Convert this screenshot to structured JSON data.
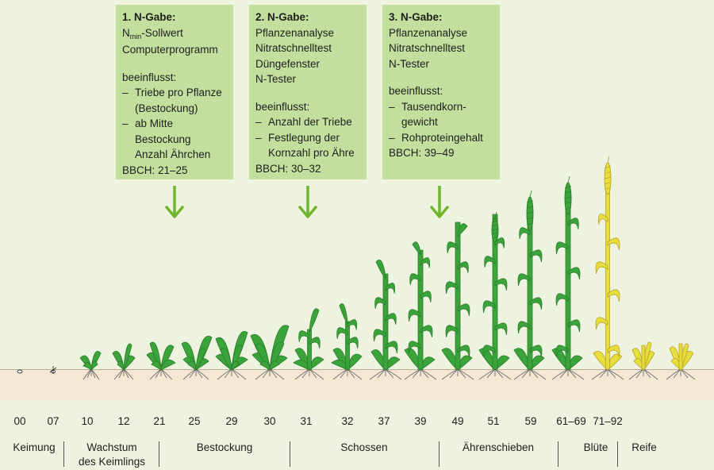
{
  "boxes": [
    {
      "title": "1. N-Gabe:",
      "methods": [
        {
          "main": "N",
          "sub": "min",
          "rest": "-Sollwert"
        },
        {
          "main": "Computerprogramm"
        }
      ],
      "influence_label": "beeinflusst:",
      "effects": [
        [
          "Triebe pro Pflanze",
          "(Bestockung)"
        ],
        [
          "ab Mitte",
          "Bestockung",
          "Anzahl Ährchen"
        ]
      ],
      "bbch": "BBCH: 21–25"
    },
    {
      "title": "2. N-Gabe:",
      "methods": [
        {
          "main": "Pflanzenanalyse"
        },
        {
          "main": "Nitratschnelltest"
        },
        {
          "main": "Düngefenster"
        },
        {
          "main": "N-Tester"
        }
      ],
      "influence_label": "beeinflusst:",
      "effects": [
        [
          "Anzahl der Triebe"
        ],
        [
          "Festlegung der",
          "Kornzahl pro Ähre"
        ]
      ],
      "bbch": "BBCH: 30–32"
    },
    {
      "title": "3. N-Gabe:",
      "methods": [
        {
          "main": "Pflanzenanalyse"
        },
        {
          "main": "Nitratschnelltest"
        },
        {
          "main": "N-Tester"
        }
      ],
      "influence_label": "beeinflusst:",
      "effects": [
        [
          "Tausendkorn-",
          "gewicht"
        ],
        [
          "Rohproteingehalt"
        ]
      ],
      "bbch": "BBCH: 39–49"
    }
  ],
  "bbch_codes": [
    "00",
    "07",
    "10",
    "12",
    "21",
    "25",
    "29",
    "30",
    "31",
    "32",
    "37",
    "39",
    "49",
    "51",
    "59",
    "61–69",
    "71–92"
  ],
  "stages": [
    "Keimung",
    "Wachstum\ndes Keimlings",
    "Bestockung",
    "Schossen",
    "Ährenschieben",
    "Blüte",
    "Reife"
  ],
  "colors": {
    "background": "#eef3e0",
    "box": "#c3df9d",
    "arrow": "#6fb52d",
    "plant_green": "#3aa43a",
    "plant_yellow": "#e7dd3c",
    "soil": "#f4e7d3"
  }
}
